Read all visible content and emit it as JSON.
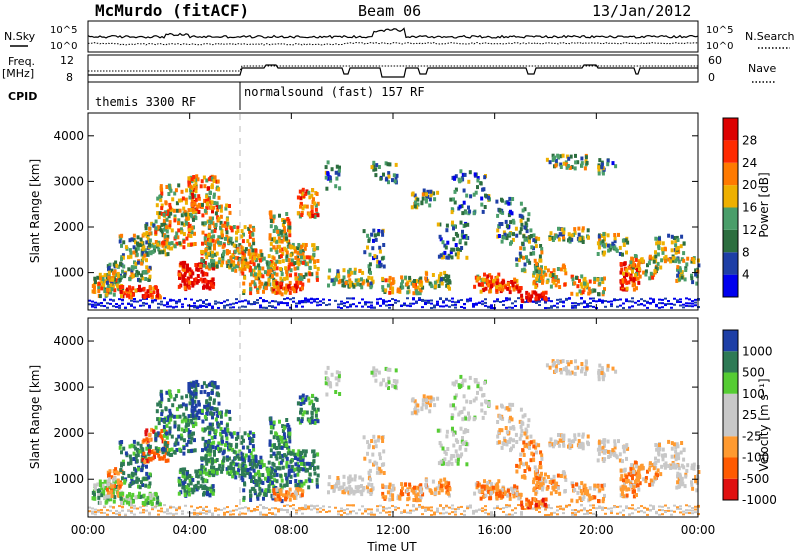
{
  "header": {
    "station": "McMurdo (fitACF)",
    "beam": "Beam 06",
    "date": "13/Jan/2012"
  },
  "summary_panel": {
    "left_labels": {
      "nsky": "N.Sky",
      "freq": "Freq.",
      "mhz": "[MHz]",
      "cpid": "CPID"
    },
    "right_labels": {
      "nsearch": "N.Search",
      "nave": "Nave"
    },
    "left_ticks": {
      "sky_hi": "10^5",
      "sky_lo": "10^0",
      "freq_hi": "12",
      "freq_lo": "8"
    },
    "right_ticks": {
      "search_hi": "10^5",
      "search_lo": "10^0",
      "nave_hi": "60",
      "nave_lo": "0"
    },
    "cpid_modes": [
      {
        "label": "themis 3300 RF",
        "start_hour": 0
      },
      {
        "label": "normalsound (fast) 157 RF",
        "start_hour": 6.0
      }
    ]
  },
  "x_axis": {
    "title": "Time UT",
    "ticks": [
      "00:00",
      "04:00",
      "08:00",
      "12:00",
      "16:00",
      "20:00",
      "00:00"
    ]
  },
  "colors": {
    "power": [
      "#0000ee",
      "#1e3fa6",
      "#2c6e3f",
      "#4a9e6a",
      "#eeb000",
      "#ff7a00",
      "#ff2a00",
      "#dd0000"
    ],
    "velocity": [
      "#e01010",
      "#ff5a00",
      "#ff9a30",
      "#c8c8c8",
      "#c8c8c8",
      "#55cc33",
      "#2e7a55",
      "#1e3fa6"
    ]
  },
  "chart_data": [
    {
      "type": "heatmap",
      "name_shown": "Power",
      "xlabel": "Time UT",
      "ylabel": "Slant Range [km]",
      "xlim": [
        0,
        24
      ],
      "ylim": [
        180,
        4500
      ],
      "yticks": [
        "1000",
        "2000",
        "3000",
        "4000"
      ],
      "colorbar_label": "Power [dB]",
      "colorbar_ticks": [
        "4",
        "8",
        "12",
        "16",
        "20",
        "24",
        "28"
      ],
      "colorbar_range": [
        0,
        30
      ]
    },
    {
      "type": "heatmap",
      "name_shown": "Velocity",
      "xlabel": "Time UT",
      "ylabel": "Slant Range [km]",
      "xlim": [
        0,
        24
      ],
      "ylim": [
        180,
        4500
      ],
      "yticks": [
        "1000",
        "2000",
        "3000",
        "4000"
      ],
      "colorbar_label": "Velocity [m s⁻¹]",
      "colorbar_ticks": [
        "1000",
        "500",
        "100",
        "25",
        "-25",
        "-100",
        "-500",
        "-1000"
      ]
    }
  ]
}
